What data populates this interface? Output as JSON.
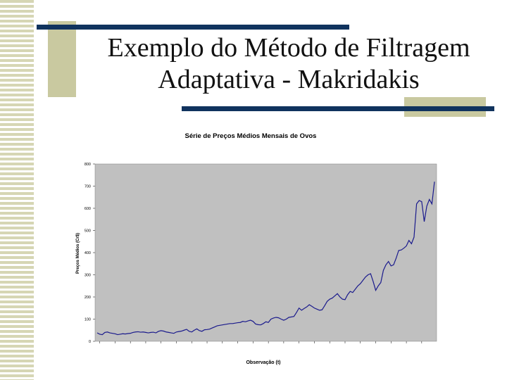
{
  "slide": {
    "title_line1": "Exemplo do Método de Filtragem",
    "title_line2": "Adaptativa - Makridakis",
    "colors": {
      "rule": "#10335e",
      "accent": "#c9c9a0",
      "stripe": "#d6d6b4"
    }
  },
  "chart_data": {
    "type": "line",
    "title": "Série de Preços Médios Mensais de Ovos",
    "xlabel": "Observação (t)",
    "ylabel": "Preços Médios (Cr$)",
    "ylim": [
      0,
      800
    ],
    "yticks": [
      0,
      100,
      200,
      300,
      400,
      500,
      600,
      700,
      800
    ],
    "grid": false,
    "plot_background": "#c0c0c0",
    "line_color": "#1a1a8c",
    "series": [
      {
        "values": [
          38,
          32,
          30,
          40,
          42,
          38,
          36,
          34,
          30,
          32,
          34,
          33,
          35,
          36,
          40,
          42,
          43,
          41,
          42,
          40,
          38,
          40,
          41,
          38,
          45,
          48,
          46,
          42,
          40,
          38,
          36,
          42,
          44,
          46,
          50,
          54,
          45,
          42,
          50,
          56,
          48,
          45,
          52,
          53,
          55,
          60,
          65,
          70,
          72,
          74,
          76,
          78,
          80,
          80,
          82,
          84,
          85,
          90,
          88,
          92,
          95,
          90,
          78,
          75,
          74,
          80,
          88,
          85,
          100,
          105,
          108,
          106,
          100,
          95,
          100,
          108,
          110,
          112,
          130,
          150,
          140,
          148,
          155,
          165,
          158,
          150,
          145,
          140,
          142,
          160,
          180,
          190,
          195,
          205,
          215,
          200,
          190,
          188,
          210,
          225,
          220,
          235,
          250,
          260,
          275,
          290,
          300,
          305,
          270,
          230,
          250,
          265,
          320,
          345,
          360,
          340,
          345,
          375,
          410,
          412,
          420,
          430,
          455,
          440,
          470,
          620,
          635,
          630,
          540,
          610,
          640,
          620,
          720
        ]
      }
    ]
  }
}
